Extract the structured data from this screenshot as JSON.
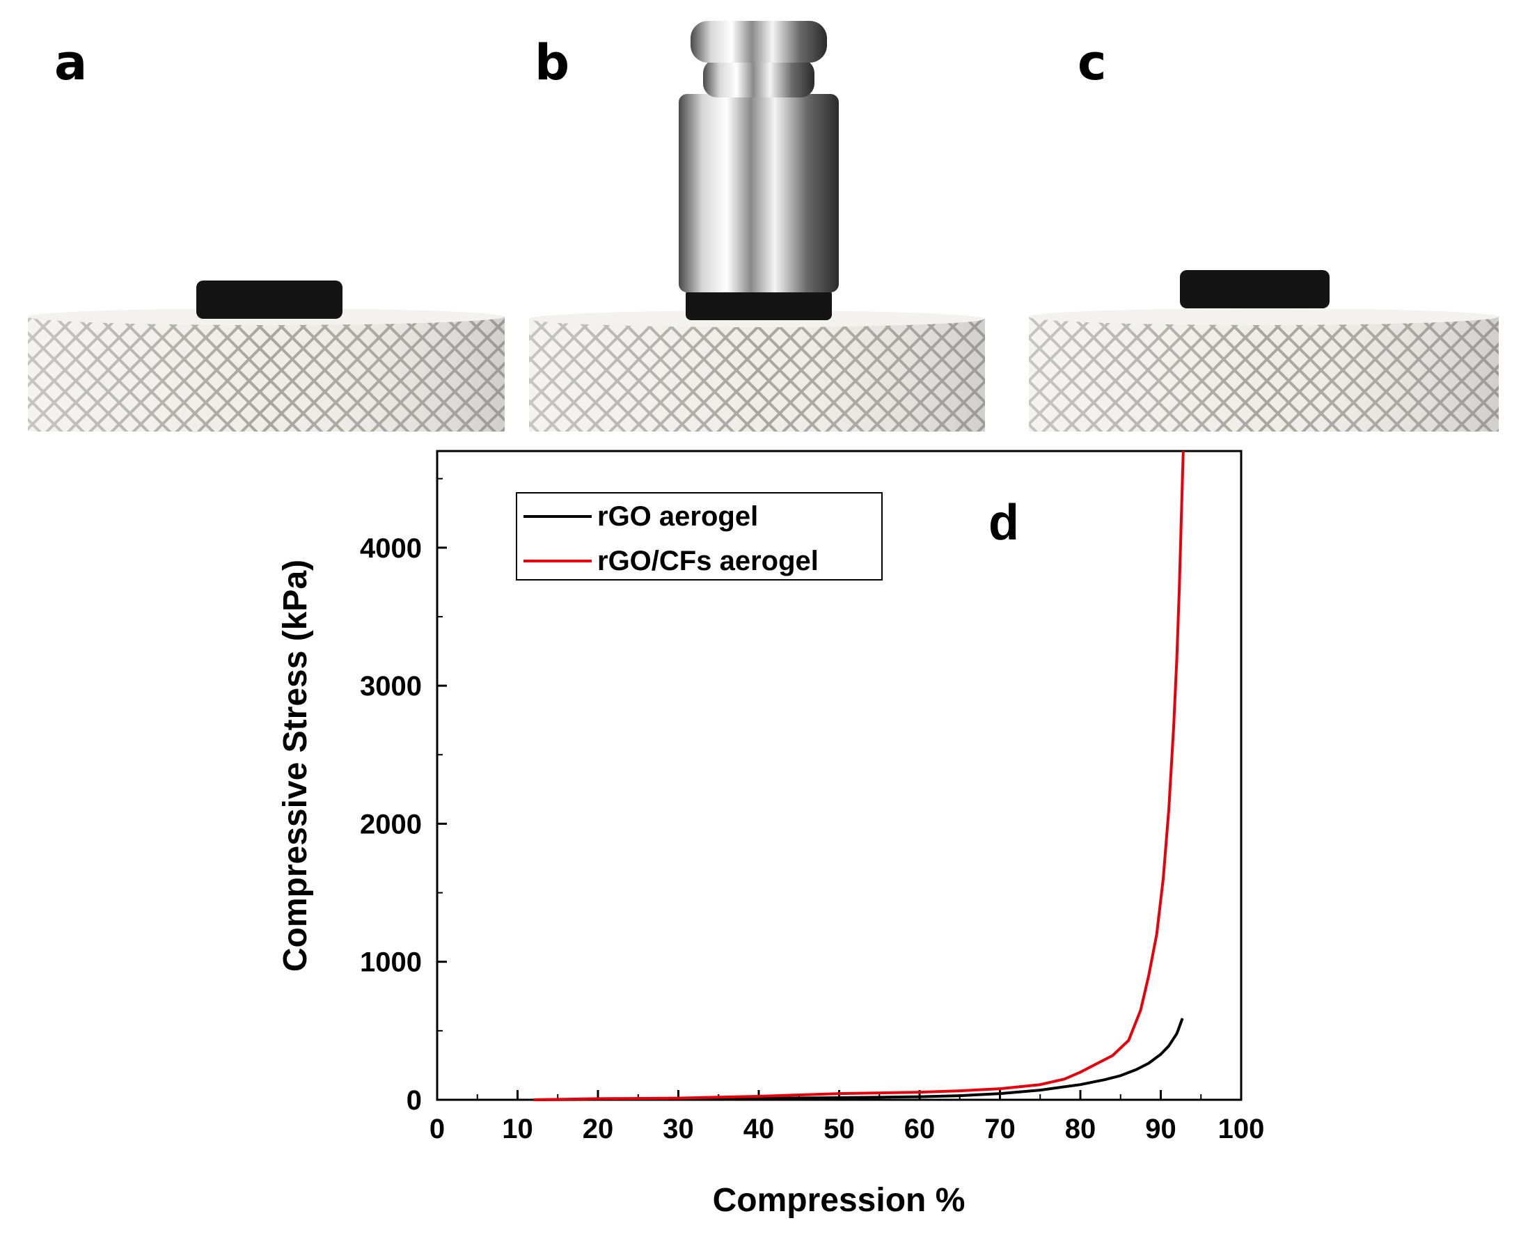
{
  "panels": {
    "a": "a",
    "b": "b",
    "c": "c",
    "d": "d"
  },
  "photos": [
    {
      "name": "photo-a",
      "content": "aerogel on knurled metal stage",
      "load": "none"
    },
    {
      "name": "photo-b",
      "content": "aerogel compressed under cylindrical metal weight",
      "load": "weight"
    },
    {
      "name": "photo-c",
      "content": "aerogel recovered on knurled metal stage",
      "load": "none"
    }
  ],
  "colors": {
    "rgo": "#000000",
    "rgo_cfs": "#e8000b",
    "knurl_light": "#e9e7e2",
    "knurl_dark": "#9c9a95",
    "aerogel": "#141414"
  },
  "chart_data": {
    "type": "line",
    "title": "",
    "xlabel": "Compression %",
    "ylabel": "Compressive  Stress (kPa)",
    "xlim": [
      0,
      100
    ],
    "ylim": [
      0,
      4700
    ],
    "xticks": [
      0,
      10,
      20,
      30,
      40,
      50,
      60,
      70,
      80,
      90,
      100
    ],
    "yticks": [
      0,
      1000,
      2000,
      3000,
      4000
    ],
    "grid": false,
    "legend_position": "top-left",
    "series": [
      {
        "name": "rGO aerogel",
        "color": "#000000",
        "x": [
          12,
          20,
          30,
          40,
          50,
          60,
          65,
          70,
          75,
          80,
          83,
          85,
          87,
          88.5,
          90,
          91,
          92,
          92.7
        ],
        "y": [
          0,
          3,
          6,
          10,
          15,
          22,
          30,
          45,
          70,
          110,
          145,
          175,
          220,
          265,
          330,
          390,
          480,
          590
        ]
      },
      {
        "name": "rGO/CFs aerogel",
        "color": "#e8000b",
        "x": [
          12,
          20,
          30,
          40,
          50,
          60,
          65,
          70,
          75,
          78,
          80,
          82,
          84,
          86,
          87.5,
          88.5,
          89.5,
          90.3,
          91,
          91.6,
          92,
          92.3,
          92.6,
          92.8
        ],
        "y": [
          0,
          8,
          12,
          25,
          45,
          55,
          65,
          80,
          110,
          150,
          200,
          260,
          320,
          430,
          650,
          900,
          1200,
          1600,
          2100,
          2700,
          3200,
          3700,
          4300,
          4700
        ]
      }
    ]
  }
}
